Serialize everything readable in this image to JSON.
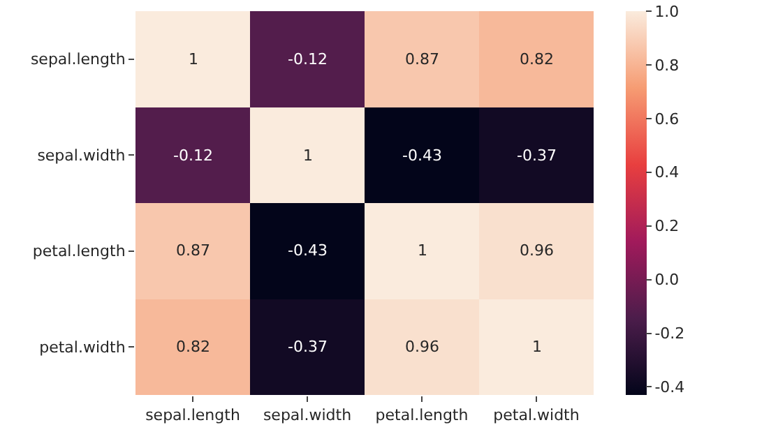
{
  "chart_data": {
    "type": "heatmap",
    "categories": [
      "sepal.length",
      "sepal.width",
      "petal.length",
      "petal.width"
    ],
    "y_categories": [
      "sepal.length",
      "sepal.width",
      "petal.length",
      "petal.width"
    ],
    "cells": [
      [
        1,
        -0.12,
        0.87,
        0.82
      ],
      [
        -0.12,
        1,
        -0.43,
        -0.37
      ],
      [
        0.87,
        -0.43,
        1,
        0.96
      ],
      [
        0.82,
        -0.37,
        0.96,
        1
      ]
    ],
    "clim": [
      -0.43,
      1.0
    ],
    "cticks": [
      -0.4,
      -0.2,
      {
        "value": 0,
        "label": "0.0"
      },
      0.2,
      0.4,
      0.6,
      0.8,
      {
        "value": 1,
        "label": "1.0"
      }
    ],
    "data_labels": true
  }
}
